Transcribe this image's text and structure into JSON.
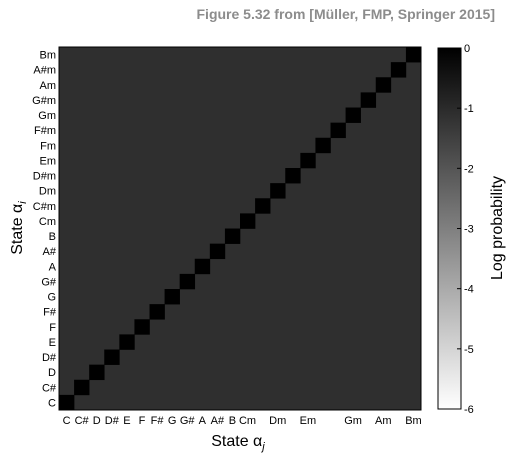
{
  "caption": "Figure 5.32 from [Müller, FMP, Springer 2015]",
  "chart_data": {
    "type": "heatmap",
    "xlabel": "State α",
    "xlabel_sub": "j",
    "ylabel": "State α",
    "ylabel_sub": "i",
    "states": [
      "C",
      "C#",
      "D",
      "D#",
      "E",
      "F",
      "F#",
      "G",
      "G#",
      "A",
      "A#",
      "B",
      "Cm",
      "C#m",
      "Dm",
      "D#m",
      "Em",
      "Fm",
      "F#m",
      "Gm",
      "G#m",
      "Am",
      "A#m",
      "Bm"
    ],
    "x_tick_labels": [
      "C",
      "C#",
      "D",
      "D#",
      "E",
      "F",
      "F#",
      "G",
      "G#",
      "A",
      "A#",
      "B",
      "Cm",
      "",
      "Dm",
      "",
      "Em",
      "",
      "",
      "Gm",
      "",
      "Am",
      "",
      "Bm"
    ],
    "y_tick_labels": [
      "C",
      "C#",
      "D",
      "D#",
      "E",
      "F",
      "F#",
      "G",
      "G#",
      "A",
      "A#",
      "B",
      "Cm",
      "C#m",
      "Dm",
      "D#m",
      "Em",
      "Fm",
      "F#m",
      "Gm",
      "G#m",
      "Am",
      "A#m",
      "Bm"
    ],
    "diagonal_log_prob": 0,
    "off_diagonal_log_prob": -1.1,
    "colorbar": {
      "label": "Log probability",
      "range": [
        -6,
        0
      ],
      "ticks": [
        "0",
        "-1",
        "-2",
        "-3",
        "-4",
        "-5",
        "-6"
      ],
      "color_high": "#000000",
      "color_low": "#ffffff"
    }
  }
}
